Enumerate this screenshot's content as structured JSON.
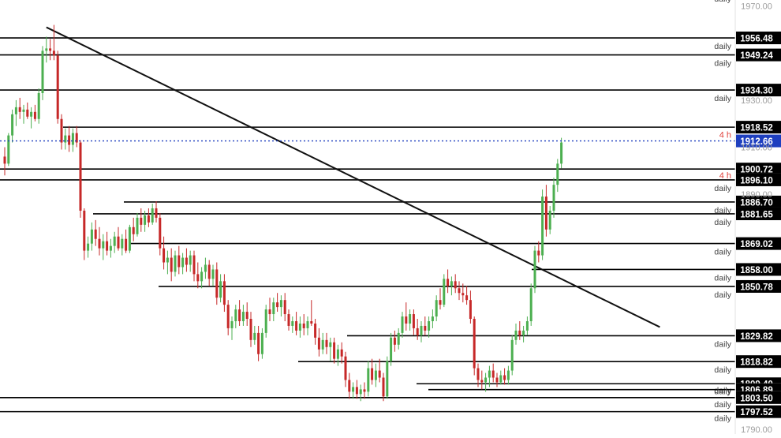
{
  "chart_data": {
    "type": "candlestick",
    "title": "",
    "xlabel": "",
    "ylabel": "",
    "ylim": [
      1788.0,
      1972.6
    ],
    "grid": false,
    "colors": {
      "up": "#4caf50",
      "down": "#c62828",
      "level_line": "#000000",
      "trend_line": "#111111",
      "current_price_line": "#1e3fbf",
      "current_price_badge": "#1e3fbf",
      "timeframe_label_4h": "#e0413b",
      "axis_text": "#9e9e9e",
      "label_text": "#424242"
    },
    "y_ticks": [
      {
        "value": 1970,
        "label": "1970.00"
      },
      {
        "value": 1930,
        "label": "1930.00"
      },
      {
        "value": 1910,
        "label": "1910.00"
      },
      {
        "value": 1890,
        "label": "1890.00"
      },
      {
        "value": 1790,
        "label": "1790.00"
      }
    ],
    "top_partial_label": "daily",
    "current_price": {
      "value": 1912.66,
      "label": "1912.66",
      "timeframe": "4 h"
    },
    "levels": [
      {
        "value": 1956.48,
        "label": "1956.48",
        "timeframe": "daily"
      },
      {
        "value": 1949.24,
        "label": "1949.24",
        "timeframe": "daily"
      },
      {
        "value": 1934.3,
        "label": "1934.30",
        "timeframe": "daily"
      },
      {
        "value": 1918.52,
        "label": "1918.52",
        "timeframe": ""
      },
      {
        "value": 1900.72,
        "label": "1900.72",
        "timeframe": ""
      },
      {
        "value": 1896.1,
        "label": "1896.10",
        "timeframe": "daily"
      },
      {
        "value": 1886.7,
        "label": "1886.70",
        "timeframe": "daily"
      },
      {
        "value": 1881.65,
        "label": "1881.65",
        "timeframe": "daily"
      },
      {
        "value": 1869.02,
        "label": "1869.02",
        "timeframe": "daily"
      },
      {
        "value": 1858.0,
        "label": "1858.00",
        "timeframe": "daily"
      },
      {
        "value": 1850.78,
        "label": "1850.78",
        "timeframe": "daily"
      },
      {
        "value": 1829.82,
        "label": "1829.82",
        "timeframe": "daily"
      },
      {
        "value": 1818.82,
        "label": "1818.82",
        "timeframe": "daily"
      },
      {
        "value": 1809.4,
        "label": "1809.40",
        "timeframe": "daily"
      },
      {
        "value": 1806.89,
        "label": "1806.89",
        "timeframe": "daily"
      },
      {
        "value": 1803.5,
        "label": "1803.50",
        "timeframe": "daily"
      },
      {
        "value": 1797.52,
        "label": "1797.52",
        "timeframe": "daily"
      }
    ],
    "trendline": {
      "from": {
        "bar": 11,
        "price": 1961.0
      },
      "to": {
        "bar": 173,
        "price": 1833.5
      }
    },
    "candles": [
      [
        1906.0,
        1910.0,
        1898.0,
        1903.0
      ],
      [
        1903.0,
        1916.0,
        1902.0,
        1915.0
      ],
      [
        1915.0,
        1926.0,
        1912.0,
        1924.0
      ],
      [
        1924.0,
        1930.0,
        1919.0,
        1927.0
      ],
      [
        1927.0,
        1931.0,
        1922.0,
        1925.0
      ],
      [
        1925.0,
        1928.0,
        1920.0,
        1926.0
      ],
      [
        1926.0,
        1929.0,
        1922.0,
        1923.0
      ],
      [
        1923.0,
        1927.0,
        1918.0,
        1925.0
      ],
      [
        1925.0,
        1928.0,
        1921.0,
        1922.0
      ],
      [
        1922.0,
        1935.0,
        1920.0,
        1933.0
      ],
      [
        1933.0,
        1953.0,
        1930.0,
        1951.0
      ],
      [
        1951.0,
        1957.0,
        1946.0,
        1952.0
      ],
      [
        1952.0,
        1956.0,
        1947.0,
        1951.0
      ],
      [
        1951.0,
        1962.0,
        1947.0,
        1949.0
      ],
      [
        1949.0,
        1951.0,
        1920.0,
        1922.0
      ],
      [
        1922.0,
        1924.0,
        1909.0,
        1912.0
      ],
      [
        1912.0,
        1918.0,
        1909.0,
        1915.0
      ],
      [
        1915.0,
        1919.0,
        1908.0,
        1911.0
      ],
      [
        1911.0,
        1918.0,
        1908.0,
        1916.0
      ],
      [
        1916.0,
        1919.0,
        1910.0,
        1912.0
      ],
      [
        1912.0,
        1913.0,
        1880.0,
        1883.0
      ],
      [
        1883.0,
        1884.0,
        1862.0,
        1866.0
      ],
      [
        1866.0,
        1872.0,
        1863.0,
        1869.0
      ],
      [
        1869.0,
        1878.0,
        1866.0,
        1875.0
      ],
      [
        1875.0,
        1879.0,
        1868.0,
        1871.0
      ],
      [
        1871.0,
        1876.0,
        1864.0,
        1867.0
      ],
      [
        1867.0,
        1873.0,
        1862.0,
        1870.0
      ],
      [
        1870.0,
        1874.0,
        1864.0,
        1866.0
      ],
      [
        1866.0,
        1871.0,
        1863.0,
        1868.0
      ],
      [
        1868.0,
        1874.0,
        1865.0,
        1872.0
      ],
      [
        1872.0,
        1876.0,
        1866.0,
        1867.0
      ],
      [
        1867.0,
        1873.0,
        1864.0,
        1871.0
      ],
      [
        1871.0,
        1875.0,
        1865.0,
        1866.0
      ],
      [
        1866.0,
        1877.0,
        1865.0,
        1876.0
      ],
      [
        1876.0,
        1880.0,
        1870.0,
        1873.0
      ],
      [
        1873.0,
        1882.0,
        1872.0,
        1880.0
      ],
      [
        1880.0,
        1884.0,
        1874.0,
        1877.0
      ],
      [
        1877.0,
        1883.0,
        1874.0,
        1881.0
      ],
      [
        1881.0,
        1884.0,
        1876.0,
        1878.0
      ],
      [
        1878.0,
        1886.0,
        1877.0,
        1884.0
      ],
      [
        1884.0,
        1887.0,
        1878.0,
        1880.0
      ],
      [
        1880.0,
        1882.0,
        1864.0,
        1867.0
      ],
      [
        1867.0,
        1872.0,
        1858.0,
        1861.0
      ],
      [
        1861.0,
        1866.0,
        1856.0,
        1863.0
      ],
      [
        1863.0,
        1867.0,
        1853.0,
        1857.0
      ],
      [
        1857.0,
        1866.0,
        1855.0,
        1864.0
      ],
      [
        1864.0,
        1868.0,
        1856.0,
        1859.0
      ],
      [
        1859.0,
        1865.0,
        1856.0,
        1863.0
      ],
      [
        1863.0,
        1867.0,
        1857.0,
        1860.0
      ],
      [
        1860.0,
        1866.0,
        1857.0,
        1864.0
      ],
      [
        1864.0,
        1866.0,
        1853.0,
        1856.0
      ],
      [
        1856.0,
        1861.0,
        1850.0,
        1853.0
      ],
      [
        1853.0,
        1859.0,
        1850.0,
        1857.0
      ],
      [
        1857.0,
        1863.0,
        1854.0,
        1860.0
      ],
      [
        1860.0,
        1862.0,
        1851.0,
        1854.0
      ],
      [
        1854.0,
        1860.0,
        1851.0,
        1858.0
      ],
      [
        1858.0,
        1861.0,
        1843.0,
        1846.0
      ],
      [
        1846.0,
        1856.0,
        1844.0,
        1853.0
      ],
      [
        1853.0,
        1856.0,
        1840.0,
        1843.0
      ],
      [
        1843.0,
        1845.0,
        1830.0,
        1833.0
      ],
      [
        1833.0,
        1838.0,
        1828.0,
        1836.0
      ],
      [
        1836.0,
        1843.0,
        1833.0,
        1841.0
      ],
      [
        1841.0,
        1845.0,
        1834.0,
        1836.0
      ],
      [
        1836.0,
        1843.0,
        1834.0,
        1840.0
      ],
      [
        1840.0,
        1844.0,
        1834.0,
        1837.0
      ],
      [
        1837.0,
        1840.0,
        1825.0,
        1828.0
      ],
      [
        1828.0,
        1834.0,
        1826.0,
        1831.0
      ],
      [
        1831.0,
        1834.0,
        1819.0,
        1822.0
      ],
      [
        1822.0,
        1833.0,
        1820.0,
        1831.0
      ],
      [
        1831.0,
        1843.0,
        1829.0,
        1841.0
      ],
      [
        1841.0,
        1846.0,
        1836.0,
        1839.0
      ],
      [
        1839.0,
        1846.0,
        1836.0,
        1844.0
      ],
      [
        1844.0,
        1848.0,
        1840.0,
        1842.0
      ],
      [
        1842.0,
        1847.0,
        1838.0,
        1845.0
      ],
      [
        1845.0,
        1848.0,
        1836.0,
        1839.0
      ],
      [
        1839.0,
        1841.0,
        1832.0,
        1834.0
      ],
      [
        1834.0,
        1838.0,
        1831.0,
        1836.0
      ],
      [
        1836.0,
        1840.0,
        1830.0,
        1832.0
      ],
      [
        1832.0,
        1838.0,
        1829.0,
        1835.0
      ],
      [
        1835.0,
        1839.0,
        1830.0,
        1833.0
      ],
      [
        1833.0,
        1838.0,
        1830.0,
        1836.0
      ],
      [
        1836.0,
        1845.0,
        1834.0,
        1835.0
      ],
      [
        1835.0,
        1837.0,
        1826.0,
        1829.0
      ],
      [
        1829.0,
        1833.0,
        1821.0,
        1824.0
      ],
      [
        1824.0,
        1831.0,
        1822.0,
        1828.0
      ],
      [
        1828.0,
        1831.0,
        1822.0,
        1825.0
      ],
      [
        1825.0,
        1829.0,
        1819.0,
        1827.0
      ],
      [
        1827.0,
        1829.0,
        1818.0,
        1820.0
      ],
      [
        1820.0,
        1826.0,
        1817.0,
        1824.0
      ],
      [
        1824.0,
        1827.0,
        1818.0,
        1821.0
      ],
      [
        1821.0,
        1823.0,
        1808.0,
        1811.0
      ],
      [
        1811.0,
        1814.0,
        1803.0,
        1806.0
      ],
      [
        1806.0,
        1810.0,
        1803.0,
        1808.0
      ],
      [
        1808.0,
        1811.0,
        1803.0,
        1805.0
      ],
      [
        1805.0,
        1809.0,
        1802.0,
        1807.0
      ],
      [
        1807.0,
        1810.0,
        1803.0,
        1806.0
      ],
      [
        1806.0,
        1819.0,
        1804.0,
        1816.0
      ],
      [
        1816.0,
        1820.0,
        1809.0,
        1811.0
      ],
      [
        1811.0,
        1818.0,
        1808.0,
        1815.0
      ],
      [
        1815.0,
        1820.0,
        1810.0,
        1812.0
      ],
      [
        1812.0,
        1814.0,
        1802.0,
        1804.0
      ],
      [
        1804.0,
        1821.0,
        1803.0,
        1819.0
      ],
      [
        1819.0,
        1831.0,
        1817.0,
        1829.0
      ],
      [
        1829.0,
        1832.0,
        1823.0,
        1826.0
      ],
      [
        1826.0,
        1833.0,
        1824.0,
        1831.0
      ],
      [
        1831.0,
        1840.0,
        1829.0,
        1838.0
      ],
      [
        1838.0,
        1844.0,
        1832.0,
        1835.0
      ],
      [
        1835.0,
        1841.0,
        1832.0,
        1839.0
      ],
      [
        1839.0,
        1841.0,
        1830.0,
        1833.0
      ],
      [
        1833.0,
        1837.0,
        1828.0,
        1830.0
      ],
      [
        1830.0,
        1836.0,
        1827.0,
        1834.0
      ],
      [
        1834.0,
        1838.0,
        1830.0,
        1832.0
      ],
      [
        1832.0,
        1838.0,
        1829.0,
        1836.0
      ],
      [
        1836.0,
        1841.0,
        1833.0,
        1838.0
      ],
      [
        1838.0,
        1847.0,
        1836.0,
        1845.0
      ],
      [
        1845.0,
        1850.0,
        1841.0,
        1843.0
      ],
      [
        1843.0,
        1856.0,
        1842.0,
        1854.0
      ],
      [
        1854.0,
        1858.0,
        1848.0,
        1851.0
      ],
      [
        1851.0,
        1855.0,
        1847.0,
        1853.0
      ],
      [
        1853.0,
        1856.0,
        1848.0,
        1850.0
      ],
      [
        1850.0,
        1853.0,
        1845.0,
        1848.0
      ],
      [
        1848.0,
        1852.0,
        1844.0,
        1847.0
      ],
      [
        1847.0,
        1851.0,
        1843.0,
        1845.0
      ],
      [
        1845.0,
        1849.0,
        1835.0,
        1837.0
      ],
      [
        1837.0,
        1838.0,
        1813.0,
        1816.0
      ],
      [
        1816.0,
        1818.0,
        1808.0,
        1811.0
      ],
      [
        1811.0,
        1815.0,
        1807.0,
        1810.0
      ],
      [
        1810.0,
        1814.0,
        1806.0,
        1812.0
      ],
      [
        1812.0,
        1817.0,
        1808.0,
        1815.0
      ],
      [
        1815.0,
        1818.0,
        1810.0,
        1812.0
      ],
      [
        1812.0,
        1814.0,
        1808.0,
        1810.0
      ],
      [
        1810.0,
        1815.0,
        1809.0,
        1813.0
      ],
      [
        1813.0,
        1816.0,
        1809.0,
        1811.0
      ],
      [
        1811.0,
        1817.0,
        1809.0,
        1815.0
      ],
      [
        1815.0,
        1830.0,
        1813.0,
        1828.0
      ],
      [
        1828.0,
        1835.0,
        1826.0,
        1832.0
      ],
      [
        1832.0,
        1836.0,
        1828.0,
        1830.0
      ],
      [
        1830.0,
        1834.0,
        1827.0,
        1832.0
      ],
      [
        1832.0,
        1838.0,
        1830.0,
        1836.0
      ],
      [
        1836.0,
        1852.0,
        1834.0,
        1850.0
      ],
      [
        1850.0,
        1868.0,
        1848.0,
        1866.0
      ],
      [
        1866.0,
        1870.0,
        1861.0,
        1864.0
      ],
      [
        1864.0,
        1892.0,
        1862.0,
        1889.0
      ],
      [
        1889.0,
        1894.0,
        1872.0,
        1875.0
      ],
      [
        1875.0,
        1885.0,
        1873.0,
        1883.0
      ],
      [
        1883.0,
        1897.0,
        1880.0,
        1894.0
      ],
      [
        1894.0,
        1905.0,
        1891.0,
        1903.0
      ],
      [
        1903.0,
        1914.0,
        1901.0,
        1912.0
      ]
    ]
  }
}
